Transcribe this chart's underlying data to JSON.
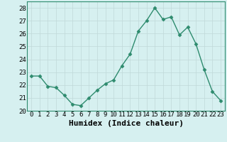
{
  "x": [
    0,
    1,
    2,
    3,
    4,
    5,
    6,
    7,
    8,
    9,
    10,
    11,
    12,
    13,
    14,
    15,
    16,
    17,
    18,
    19,
    20,
    21,
    22,
    23
  ],
  "y": [
    22.7,
    22.7,
    21.9,
    21.8,
    21.2,
    20.5,
    20.4,
    21.0,
    21.6,
    22.1,
    22.4,
    23.5,
    24.4,
    26.2,
    27.0,
    28.0,
    27.1,
    27.3,
    25.9,
    26.5,
    25.2,
    23.2,
    21.5,
    20.8
  ],
  "line_color": "#2e8b6e",
  "marker": "D",
  "marker_size": 2.5,
  "line_width": 1.0,
  "bg_color": "#d6f0f0",
  "grid_color": "#c0d8d8",
  "grid_color_minor": "#e0ecec",
  "xlabel": "Humidex (Indice chaleur)",
  "xlabel_fontsize": 8,
  "tick_fontsize": 6.5,
  "ylim": [
    20,
    28.5
  ],
  "yticks": [
    20,
    21,
    22,
    23,
    24,
    25,
    26,
    27,
    28
  ],
  "xticks": [
    0,
    1,
    2,
    3,
    4,
    5,
    6,
    7,
    8,
    9,
    10,
    11,
    12,
    13,
    14,
    15,
    16,
    17,
    18,
    19,
    20,
    21,
    22,
    23
  ],
  "xlim": [
    -0.5,
    23.5
  ]
}
